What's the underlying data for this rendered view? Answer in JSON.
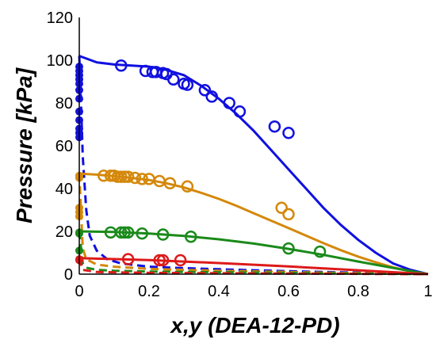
{
  "chart_data": {
    "type": "line",
    "xlabel": "x,y (DEA-12-PD)",
    "ylabel": "Pressure [kPa]",
    "xlim": [
      0,
      1
    ],
    "ylim": [
      0,
      120
    ],
    "xticks": [
      "0",
      "0.2",
      "0.4",
      "0.6",
      "0.8",
      "1"
    ],
    "yticks": [
      "0",
      "20",
      "40",
      "60",
      "80",
      "100",
      "120"
    ],
    "grid": false,
    "legend": "none",
    "series": [
      {
        "color": "#1010e0",
        "bubble_curve": {
          "x": [
            0.0,
            0.05,
            0.1,
            0.15,
            0.2,
            0.25,
            0.3,
            0.35,
            0.4,
            0.45,
            0.5,
            0.55,
            0.6,
            0.65,
            0.7,
            0.75,
            0.8,
            0.85,
            0.9,
            0.95,
            1.0
          ],
          "y": [
            102,
            99,
            98,
            97.5,
            97,
            95.5,
            93,
            88,
            82,
            75,
            67,
            58,
            49,
            40,
            31,
            23,
            16,
            10,
            5,
            2,
            0
          ]
        },
        "dew_curve": {
          "x": [
            0.0,
            0.005,
            0.01,
            0.02,
            0.03,
            0.05,
            0.08,
            0.12,
            0.2,
            0.3,
            0.4,
            0.5,
            0.6,
            0.7,
            0.8,
            0.9,
            1.0
          ],
          "y": [
            102,
            80,
            55,
            30,
            18,
            11,
            7,
            5,
            3.5,
            2.8,
            2.3,
            1.8,
            1.4,
            1,
            0.7,
            0.4,
            0
          ]
        },
        "open_points": {
          "x": [
            0.12,
            0.19,
            0.21,
            0.22,
            0.24,
            0.25,
            0.27,
            0.3,
            0.31,
            0.36,
            0.38,
            0.43,
            0.46,
            0.56,
            0.6
          ],
          "y": [
            97.5,
            95,
            94.5,
            94.5,
            94,
            93.5,
            91,
            89,
            88.5,
            86,
            83,
            80,
            76,
            69,
            66
          ]
        },
        "filled_points": {
          "x": [
            0.0,
            0.0,
            0.0,
            0.0,
            0.0,
            0.0,
            0.0,
            0.0,
            0.0,
            0.0,
            0.0,
            0.0
          ],
          "y": [
            97,
            95,
            93,
            91,
            89,
            86,
            82,
            76,
            72,
            68,
            66,
            64
          ]
        }
      },
      {
        "color": "#d4880a",
        "bubble_curve": {
          "x": [
            0.0,
            0.05,
            0.1,
            0.15,
            0.2,
            0.25,
            0.3,
            0.35,
            0.4,
            0.45,
            0.5,
            0.55,
            0.6,
            0.65,
            0.7,
            0.75,
            0.8,
            0.85,
            0.9,
            0.95,
            1.0
          ],
          "y": [
            47,
            46.5,
            45.8,
            45,
            44,
            42.5,
            40.5,
            38,
            35.2,
            32,
            28.5,
            25,
            21.5,
            18,
            14.5,
            11.2,
            8.2,
            5.5,
            3.2,
            1.3,
            0
          ]
        },
        "dew_curve": {
          "x": [
            0.0,
            0.01,
            0.02,
            0.05,
            0.1,
            0.2,
            0.3,
            0.4,
            0.5,
            0.6,
            0.7,
            0.8,
            0.9,
            1.0
          ],
          "y": [
            47,
            12,
            7,
            4.5,
            3.5,
            2.5,
            2,
            1.6,
            1.3,
            1,
            0.7,
            0.5,
            0.25,
            0
          ]
        },
        "open_points": {
          "x": [
            0.07,
            0.09,
            0.1,
            0.11,
            0.12,
            0.13,
            0.14,
            0.16,
            0.18,
            0.2,
            0.23,
            0.26,
            0.31,
            0.58,
            0.6
          ],
          "y": [
            46,
            46,
            46,
            45.5,
            45.5,
            45.5,
            45.5,
            45,
            44.5,
            44.5,
            43.5,
            42.5,
            41,
            31,
            28
          ]
        },
        "filled_points": {
          "x": [
            0.0,
            0.0,
            0.0,
            0.0,
            0.0,
            0.0
          ],
          "y": [
            46,
            45,
            31,
            29,
            27,
            19
          ]
        }
      },
      {
        "color": "#1a8a1a",
        "bubble_curve": {
          "x": [
            0.0,
            0.1,
            0.2,
            0.3,
            0.4,
            0.5,
            0.6,
            0.7,
            0.8,
            0.9,
            1.0
          ],
          "y": [
            20,
            19.7,
            19,
            17.9,
            16.3,
            14.3,
            11.8,
            9,
            5.9,
            2.9,
            0
          ]
        },
        "dew_curve": {
          "x": [
            0.0,
            0.01,
            0.02,
            0.05,
            0.1,
            0.2,
            0.4,
            0.6,
            0.8,
            1.0
          ],
          "y": [
            20,
            5,
            3,
            2,
            1.6,
            1.2,
            0.9,
            0.6,
            0.3,
            0
          ]
        },
        "open_points": {
          "x": [
            0.09,
            0.12,
            0.13,
            0.14,
            0.18,
            0.24,
            0.32,
            0.6,
            0.69
          ],
          "y": [
            19.5,
            19.5,
            19.5,
            19.5,
            19,
            18.5,
            17.5,
            12,
            10.5
          ]
        },
        "filled_points": {
          "x": [
            0.0,
            0.0,
            0.0
          ],
          "y": [
            19.5,
            19,
            11
          ]
        }
      },
      {
        "color": "#dd1a1a",
        "bubble_curve": {
          "x": [
            0.0,
            0.2,
            0.4,
            0.6,
            0.8,
            1.0
          ],
          "y": [
            7.5,
            6.6,
            5.2,
            3.6,
            1.8,
            0
          ]
        },
        "dew_curve": {
          "x": [
            0.0,
            0.01,
            0.05,
            0.2,
            0.5,
            0.8,
            1.0
          ],
          "y": [
            7.5,
            2,
            1,
            0.6,
            0.35,
            0.15,
            0
          ]
        },
        "open_points": {
          "x": [
            0.14,
            0.23,
            0.24,
            0.29
          ],
          "y": [
            7,
            6.5,
            6.5,
            6.5
          ]
        },
        "filled_points": {
          "x": [
            0.0,
            0.0
          ],
          "y": [
            7,
            6.5
          ]
        }
      }
    ]
  }
}
